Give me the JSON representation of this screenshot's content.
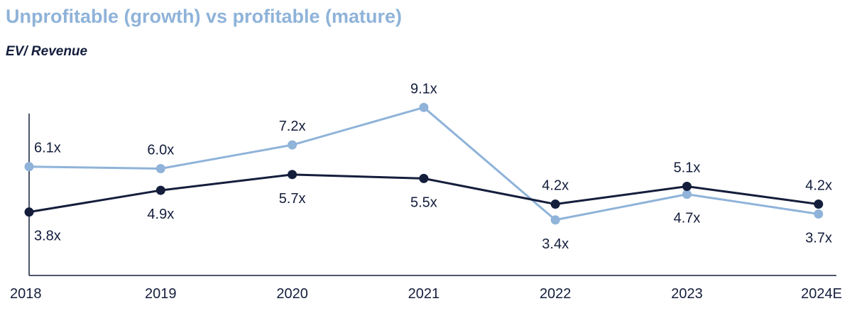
{
  "chart_data": {
    "type": "line",
    "title": "Unprofitable (growth) vs profitable (mature)",
    "subtitle": "EV/ Revenue",
    "categories": [
      "2018",
      "2019",
      "2020",
      "2021",
      "2022",
      "2023",
      "2024E"
    ],
    "series": [
      {
        "values": [
          6.1,
          6.0,
          7.2,
          9.1,
          3.4,
          4.7,
          3.7
        ],
        "labels": [
          "6.1x",
          "6.0x",
          "7.2x",
          "9.1x",
          "3.4x",
          "4.7x",
          "3.7x"
        ],
        "color": "#8fb3d9"
      },
      {
        "values": [
          3.8,
          4.9,
          5.7,
          5.5,
          4.2,
          5.1,
          4.2
        ],
        "labels": [
          "3.8x",
          "4.9x",
          "5.7x",
          "5.5x",
          "4.2x",
          "5.1x",
          "4.2x"
        ],
        "color": "#141e3c"
      }
    ],
    "ylim": [
      0,
      10
    ],
    "grid": false,
    "legend": "none",
    "title_color": "#8fb3d9",
    "subtitle_color": "#141e3c",
    "axis_color": "#141e3c",
    "label_color": "#141e3c"
  }
}
